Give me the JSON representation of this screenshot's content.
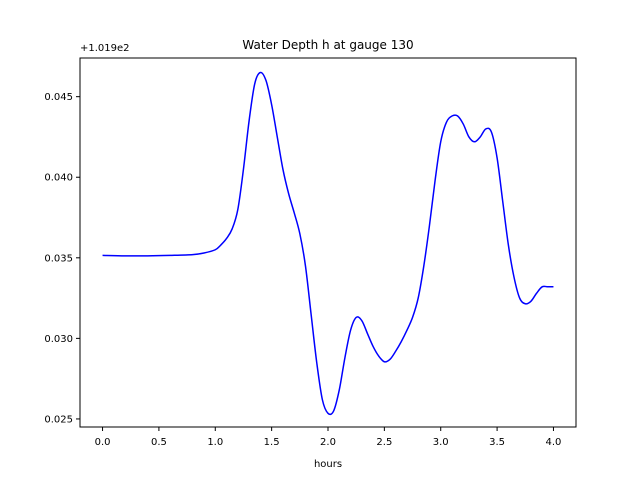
{
  "chart_data": {
    "type": "line",
    "title": "Water Depth h at gauge 130",
    "xlabel": "hours",
    "ylabel": "",
    "y_offset_label": "+1.019e2",
    "xlim": [
      -0.2,
      4.2
    ],
    "ylim": [
      0.0245,
      0.0474
    ],
    "xticks": [
      0.0,
      0.5,
      1.0,
      1.5,
      2.0,
      2.5,
      3.0,
      3.5,
      4.0
    ],
    "xtick_labels": [
      "0.0",
      "0.5",
      "1.0",
      "1.5",
      "2.0",
      "2.5",
      "3.0",
      "3.5",
      "4.0"
    ],
    "yticks": [
      0.025,
      0.03,
      0.035,
      0.04,
      0.045
    ],
    "ytick_labels": [
      "0.025",
      "0.030",
      "0.035",
      "0.040",
      "0.045"
    ],
    "grid": false,
    "series": [
      {
        "color": "#0000ff",
        "x": [
          0.0,
          0.2,
          0.4,
          0.6,
          0.8,
          0.9,
          1.0,
          1.05,
          1.1,
          1.15,
          1.2,
          1.25,
          1.3,
          1.35,
          1.4,
          1.45,
          1.5,
          1.55,
          1.6,
          1.65,
          1.7,
          1.75,
          1.8,
          1.85,
          1.9,
          1.95,
          2.0,
          2.05,
          2.1,
          2.15,
          2.2,
          2.25,
          2.3,
          2.35,
          2.4,
          2.45,
          2.5,
          2.55,
          2.6,
          2.65,
          2.7,
          2.75,
          2.8,
          2.85,
          2.9,
          2.95,
          3.0,
          3.05,
          3.1,
          3.15,
          3.2,
          3.25,
          3.3,
          3.35,
          3.4,
          3.45,
          3.5,
          3.55,
          3.6,
          3.65,
          3.7,
          3.75,
          3.8,
          3.85,
          3.9,
          3.95,
          4.0
        ],
        "y": [
          0.03515,
          0.03512,
          0.03512,
          0.03515,
          0.0352,
          0.0353,
          0.0355,
          0.0358,
          0.0362,
          0.0368,
          0.038,
          0.0405,
          0.0435,
          0.0458,
          0.0465,
          0.046,
          0.0445,
          0.0425,
          0.0405,
          0.039,
          0.0378,
          0.0365,
          0.0345,
          0.0315,
          0.0285,
          0.0262,
          0.02535,
          0.0255,
          0.0268,
          0.0288,
          0.0305,
          0.0313,
          0.0311,
          0.0303,
          0.0295,
          0.0289,
          0.02855,
          0.0287,
          0.0292,
          0.0298,
          0.0305,
          0.0313,
          0.0325,
          0.0345,
          0.037,
          0.0398,
          0.0422,
          0.0434,
          0.0438,
          0.0438,
          0.0433,
          0.0425,
          0.0422,
          0.0425,
          0.043,
          0.0428,
          0.0412,
          0.0385,
          0.0358,
          0.0338,
          0.0325,
          0.03215,
          0.0323,
          0.0328,
          0.0332,
          0.0332,
          0.0332
        ]
      }
    ]
  }
}
